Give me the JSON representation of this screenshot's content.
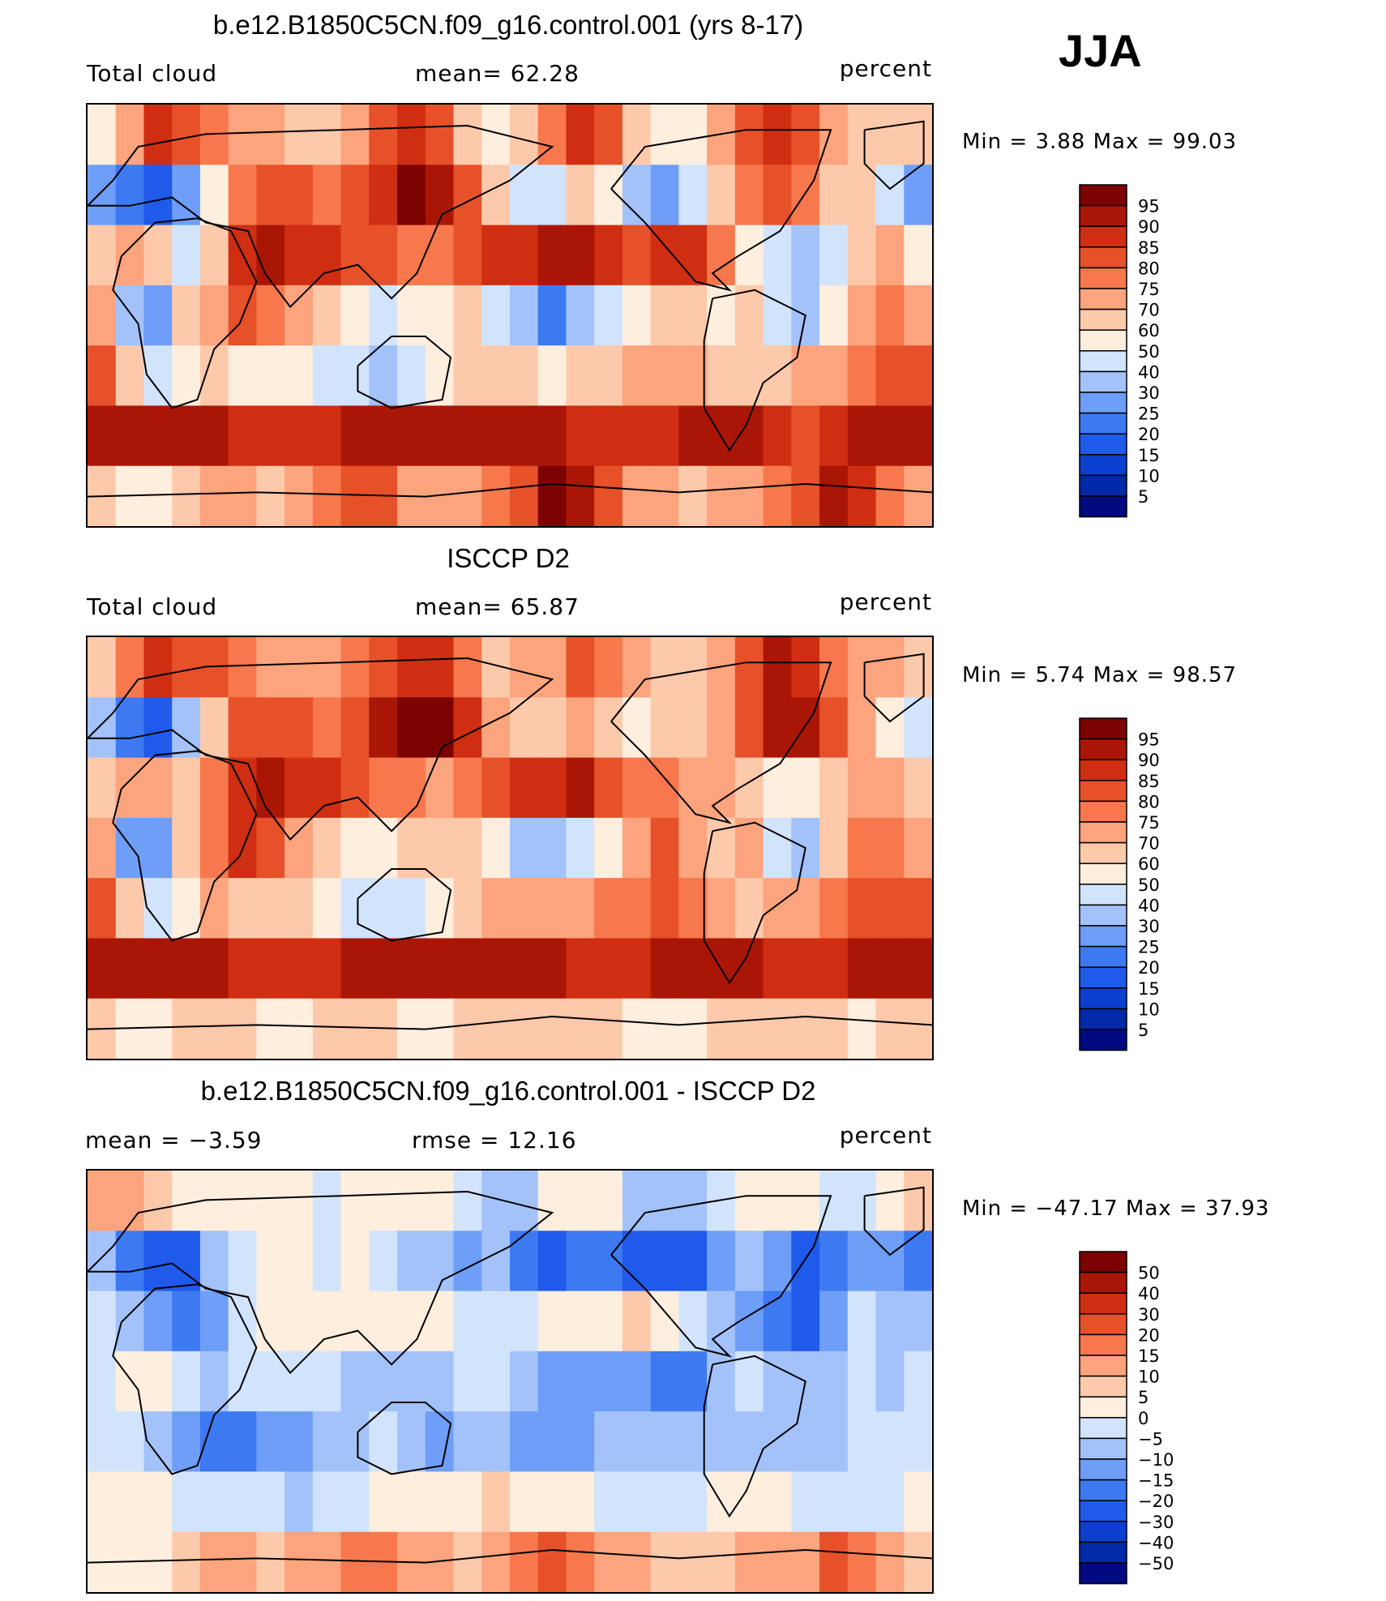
{
  "season": "JJA",
  "panels": [
    {
      "title": "b.e12.B1850C5CN.f09_g16.control.001 (yrs 8-17)",
      "left_label": "Total cloud",
      "center_label": "mean=  62.28",
      "right_label": "percent",
      "minmax": "Min =   3.88 Max =   99.03"
    },
    {
      "title": "ISCCP D2",
      "left_label": "Total cloud",
      "center_label": "mean=  65.87",
      "right_label": "percent",
      "minmax": "Min =   5.74 Max =   98.57"
    },
    {
      "title": "b.e12.B1850C5CN.f09_g16.control.001 - ISCCP D2",
      "left_label": "mean =  −3.59",
      "center_label": "rmse =  12.16",
      "right_label": "percent",
      "minmax": "Min = −47.17 Max =   37.93"
    }
  ],
  "chart_data": [
    {
      "type": "heatmap",
      "title": "b.e12.B1850C5CN.f09_g16.control.001 (yrs 8-17)",
      "variable": "Total cloud",
      "units": "percent",
      "mean": 62.28,
      "min": 3.88,
      "max": 99.03,
      "levels": [
        5,
        10,
        15,
        20,
        25,
        30,
        40,
        50,
        60,
        70,
        75,
        80,
        85,
        90,
        95
      ],
      "level_labels": [
        "95",
        "90",
        "85",
        "80",
        "75",
        "70",
        "60",
        "50",
        "40",
        "30",
        "25",
        "20",
        "15",
        "10",
        "5"
      ],
      "colors": [
        "#000a80",
        "#002aa8",
        "#0a3fd0",
        "#1f5aeb",
        "#3d7af2",
        "#6e9ef7",
        "#a3c2fa",
        "#d2e4fc",
        "#fdeede",
        "#fdc9ab",
        "#fca47d",
        "#f6784c",
        "#e6512a",
        "#cf2e12",
        "#aa1606",
        "#7d0202"
      ],
      "rows": [
        [
          50,
          72,
          85,
          82,
          76,
          72,
          70,
          65,
          65,
          72,
          80,
          86,
          82,
          68,
          55,
          62,
          75,
          85,
          80,
          60,
          55,
          58,
          70,
          82,
          86,
          80,
          72,
          66,
          62,
          60
        ],
        [
          25,
          20,
          15,
          25,
          55,
          78,
          82,
          80,
          76,
          80,
          88,
          95,
          93,
          80,
          60,
          40,
          45,
          60,
          50,
          30,
          28,
          40,
          60,
          75,
          82,
          75,
          68,
          60,
          42,
          25
        ],
        [
          60,
          72,
          66,
          40,
          60,
          88,
          90,
          88,
          85,
          80,
          80,
          78,
          78,
          82,
          86,
          88,
          90,
          90,
          88,
          82,
          86,
          85,
          75,
          55,
          40,
          30,
          48,
          66,
          70,
          55
        ],
        [
          70,
          30,
          25,
          60,
          70,
          82,
          78,
          72,
          60,
          50,
          48,
          50,
          58,
          62,
          45,
          30,
          22,
          30,
          45,
          55,
          64,
          60,
          58,
          66,
          40,
          30,
          55,
          74,
          75,
          70
        ],
        [
          80,
          60,
          45,
          50,
          60,
          56,
          52,
          50,
          48,
          40,
          38,
          42,
          55,
          62,
          64,
          60,
          58,
          62,
          68,
          72,
          74,
          70,
          68,
          60,
          64,
          70,
          74,
          78,
          80,
          80
        ],
        [
          90,
          92,
          93,
          92,
          90,
          88,
          86,
          86,
          88,
          90,
          92,
          93,
          94,
          94,
          93,
          92,
          90,
          88,
          86,
          86,
          88,
          90,
          92,
          90,
          86,
          84,
          86,
          90,
          92,
          92
        ],
        [
          62,
          55,
          58,
          66,
          74,
          72,
          66,
          70,
          76,
          82,
          80,
          74,
          72,
          70,
          76,
          84,
          96,
          92,
          82,
          74,
          70,
          68,
          72,
          74,
          76,
          80,
          92,
          86,
          76,
          70
        ]
      ]
    },
    {
      "type": "heatmap",
      "title": "ISCCP D2",
      "variable": "Total cloud",
      "units": "percent",
      "mean": 65.87,
      "min": 5.74,
      "max": 98.57,
      "levels": [
        5,
        10,
        15,
        20,
        25,
        30,
        40,
        50,
        60,
        70,
        75,
        80,
        85,
        90,
        95
      ],
      "level_labels": [
        "95",
        "90",
        "85",
        "80",
        "75",
        "70",
        "60",
        "50",
        "40",
        "30",
        "25",
        "20",
        "15",
        "10",
        "5"
      ],
      "colors": [
        "#000a80",
        "#002aa8",
        "#0a3fd0",
        "#1f5aeb",
        "#3d7af2",
        "#6e9ef7",
        "#a3c2fa",
        "#d2e4fc",
        "#fdeede",
        "#fdc9ab",
        "#fca47d",
        "#f6784c",
        "#e6512a",
        "#cf2e12",
        "#aa1606",
        "#7d0202"
      ],
      "rows": [
        [
          68,
          78,
          86,
          84,
          80,
          76,
          72,
          70,
          72,
          78,
          84,
          88,
          85,
          76,
          66,
          70,
          74,
          80,
          78,
          70,
          66,
          66,
          74,
          84,
          90,
          86,
          78,
          72,
          70,
          68
        ],
        [
          30,
          20,
          15,
          30,
          62,
          80,
          82,
          82,
          78,
          80,
          90,
          97,
          96,
          88,
          72,
          62,
          64,
          72,
          66,
          58,
          60,
          66,
          74,
          84,
          92,
          94,
          84,
          70,
          54,
          40
        ],
        [
          64,
          74,
          70,
          66,
          76,
          88,
          90,
          88,
          86,
          80,
          78,
          76,
          74,
          78,
          84,
          86,
          88,
          90,
          84,
          78,
          76,
          74,
          72,
          64,
          56,
          50,
          62,
          72,
          74,
          64
        ],
        [
          72,
          28,
          25,
          62,
          78,
          86,
          80,
          74,
          62,
          56,
          56,
          60,
          64,
          66,
          50,
          38,
          36,
          44,
          58,
          70,
          80,
          74,
          66,
          70,
          48,
          36,
          60,
          76,
          78,
          74
        ],
        [
          82,
          62,
          40,
          56,
          72,
          66,
          62,
          60,
          56,
          46,
          40,
          46,
          58,
          66,
          70,
          72,
          72,
          74,
          76,
          78,
          80,
          76,
          72,
          66,
          70,
          74,
          78,
          80,
          82,
          82
        ],
        [
          90,
          92,
          94,
          92,
          90,
          88,
          86,
          86,
          88,
          90,
          92,
          93,
          92,
          90,
          90,
          90,
          90,
          88,
          88,
          88,
          90,
          92,
          92,
          90,
          88,
          86,
          88,
          92,
          93,
          92
        ],
        [
          60,
          56,
          58,
          62,
          64,
          60,
          56,
          58,
          60,
          62,
          60,
          56,
          58,
          60,
          62,
          64,
          66,
          62,
          60,
          58,
          56,
          58,
          60,
          62,
          64,
          62,
          60,
          58,
          60,
          60
        ]
      ]
    },
    {
      "type": "heatmap",
      "title": "b.e12.B1850C5CN.f09_g16.control.001 - ISCCP D2",
      "units": "percent",
      "mean": -3.59,
      "rmse": 12.16,
      "min": -47.17,
      "max": 37.93,
      "levels": [
        -50,
        -40,
        -30,
        -20,
        -15,
        -10,
        -5,
        0,
        5,
        10,
        15,
        20,
        30,
        40,
        50
      ],
      "level_labels": [
        "50",
        "40",
        "30",
        "20",
        "15",
        "10",
        "5",
        "0",
        "−5",
        "−10",
        "−15",
        "−20",
        "−30",
        "−40",
        "−50"
      ],
      "colors": [
        "#000a80",
        "#002aa8",
        "#0a3fd0",
        "#1f5aeb",
        "#3d7af2",
        "#6e9ef7",
        "#a3c2fa",
        "#d2e4fc",
        "#fdeede",
        "#fdc9ab",
        "#fca47d",
        "#f6784c",
        "#e6512a",
        "#cf2e12",
        "#aa1606",
        "#7d0202"
      ],
      "rows": [
        [
          10,
          12,
          6,
          4,
          2,
          4,
          2,
          0,
          -2,
          0,
          2,
          4,
          2,
          -4,
          -8,
          -6,
          0,
          4,
          2,
          -6,
          -8,
          -6,
          -2,
          2,
          4,
          0,
          -4,
          -2,
          2,
          6
        ],
        [
          -6,
          -18,
          -24,
          -22,
          -10,
          -4,
          2,
          0,
          -2,
          0,
          -2,
          -6,
          -10,
          -12,
          -10,
          -18,
          -24,
          -18,
          -16,
          -26,
          -30,
          -24,
          -14,
          -10,
          -12,
          -22,
          -18,
          -12,
          -14,
          -18
        ],
        [
          -4,
          -6,
          -12,
          -20,
          -14,
          -2,
          4,
          2,
          0,
          2,
          2,
          4,
          2,
          -2,
          -4,
          -2,
          0,
          2,
          4,
          6,
          2,
          -4,
          -8,
          -14,
          -20,
          -24,
          -12,
          -4,
          -6,
          -10
        ],
        [
          -2,
          4,
          2,
          -4,
          -10,
          -4,
          -2,
          -2,
          -2,
          -6,
          -8,
          -10,
          -6,
          -4,
          -4,
          -6,
          -14,
          -14,
          -12,
          -14,
          -18,
          -16,
          -10,
          -4,
          -10,
          -8,
          -6,
          -4,
          -6,
          -4
        ],
        [
          -2,
          -4,
          -10,
          -14,
          -18,
          -16,
          -14,
          -12,
          -10,
          -8,
          -4,
          -6,
          -12,
          -8,
          -10,
          -14,
          -14,
          -12,
          -10,
          -8,
          -6,
          -8,
          -6,
          -8,
          -10,
          -6,
          -6,
          -4,
          -4,
          -4
        ],
        [
          0,
          2,
          0,
          -2,
          -2,
          -4,
          -4,
          -6,
          -4,
          -2,
          0,
          2,
          2,
          4,
          6,
          4,
          2,
          0,
          -2,
          -2,
          -4,
          -2,
          0,
          2,
          0,
          -2,
          -2,
          -4,
          -2,
          0
        ],
        [
          4,
          0,
          4,
          6,
          10,
          12,
          8,
          10,
          14,
          18,
          16,
          12,
          10,
          8,
          12,
          18,
          20,
          16,
          12,
          10,
          8,
          6,
          8,
          10,
          12,
          14,
          20,
          16,
          12,
          8
        ]
      ]
    }
  ]
}
